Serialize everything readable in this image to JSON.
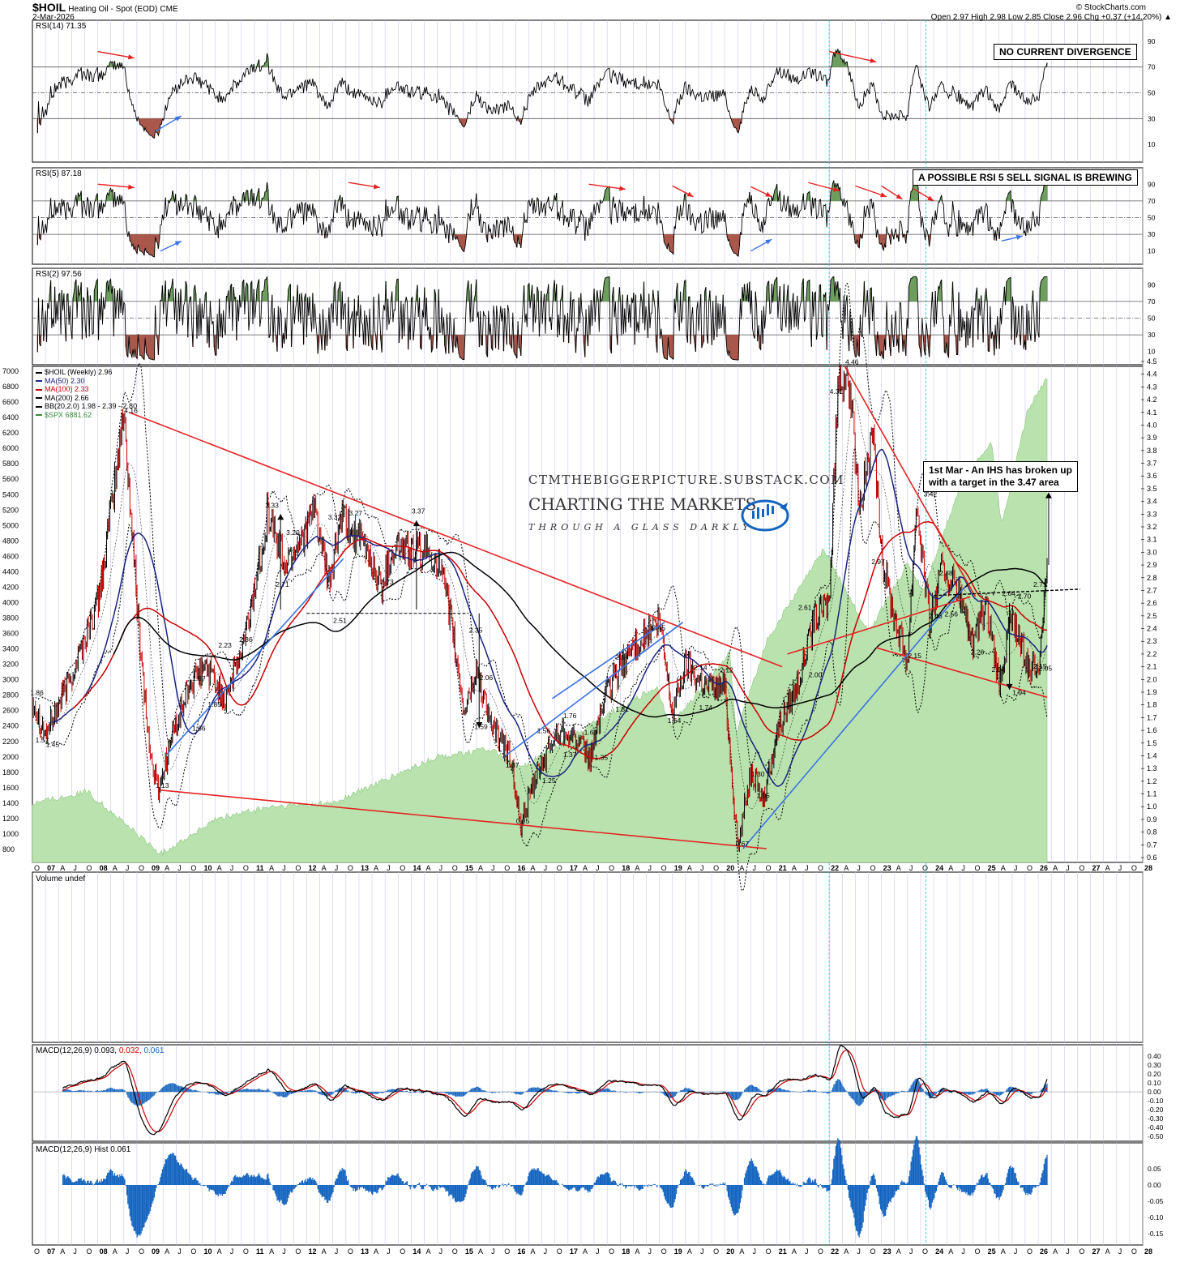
{
  "header": {
    "symbol": "$HOIL",
    "description": "Heating Oil - Spot (EOD)",
    "exchange": "CME",
    "date": "2-Mar-2026",
    "source": "© StockCharts.com",
    "ohlc": "Open 2.97  High 2.98  Low 2.85  Close 2.96  Chg +0.37 (+14.20%) ▲"
  },
  "panels": {
    "rsi14": {
      "label": "RSI(14) 71.35",
      "note": "NO CURRENT DIVERGENCE",
      "ticks": [
        "90",
        "70",
        "50",
        "30",
        "10"
      ]
    },
    "rsi5": {
      "label": "RSI(5) 87.18",
      "note": "A POSSIBLE RSI 5 SELL SIGNAL IS BREWING",
      "ticks": [
        "90",
        "70",
        "50",
        "30",
        "10"
      ]
    },
    "rsi2": {
      "label": "RSI(2) 97.56",
      "ticks": [
        "90",
        "70",
        "50",
        "30",
        "10"
      ]
    },
    "volume": {
      "label": "Volume undef"
    },
    "macd": {
      "label_main": "MACD(12,26,9) 0.093,",
      "label_signal": "0.032,",
      "label_hist": "0.061",
      "ticks": [
        "0.40",
        "0.30",
        "0.20",
        "0.10",
        "0.00",
        "-0.10",
        "-0.20",
        "-0.30",
        "-0.40",
        "-0.50"
      ]
    },
    "hist": {
      "label": "MACD(12,26,9) Hist 0.061",
      "ticks": [
        "0.05",
        "0.00",
        "-0.05",
        "-0.10",
        "-0.15"
      ]
    }
  },
  "legend": [
    {
      "text": "$HOIL (Weekly) 2.96",
      "color": "#000000"
    },
    {
      "text": "MA(50) 2.30",
      "color": "#1a237e"
    },
    {
      "text": "MA(100) 2.33",
      "color": "#cc0000"
    },
    {
      "text": "MA(200) 2.66",
      "color": "#000000"
    },
    {
      "text": "BB(20,2.0) 1.98 - 2.39 - 2.80",
      "color": "#000000"
    },
    {
      "text": "$SPX 6881.62",
      "color": "#3a8a3a"
    }
  ],
  "watermark": {
    "site": "CTMTHEBIGGERPICTURE.SUBSTACK.COM",
    "title": "CHARTING THE MARKETS",
    "tagline": "THROUGH A GLASS DARKLY"
  },
  "annotation": {
    "line1": "1st Mar - An IHS has broken up",
    "line2": "with a target in the 3.47 area"
  },
  "axes": {
    "price_ticks": [
      "4.5",
      "4.4",
      "4.3",
      "4.2",
      "4.1",
      "4.0",
      "3.9",
      "3.8",
      "3.7",
      "3.6",
      "3.5",
      "3.4",
      "3.3",
      "3.2",
      "3.1",
      "3.0",
      "2.9",
      "2.8",
      "2.7",
      "2.6",
      "2.5",
      "2.4",
      "2.3",
      "2.2",
      "2.1",
      "2.0",
      "1.9",
      "1.8",
      "1.7",
      "1.6",
      "1.5",
      "1.4",
      "1.3",
      "1.2",
      "1.1",
      "1.0",
      "0.9",
      "0.8",
      "0.7",
      "0.6"
    ],
    "spx_ticks": [
      "7000",
      "6800",
      "6600",
      "6400",
      "6200",
      "6000",
      "5800",
      "5600",
      "5400",
      "5200",
      "5000",
      "4800",
      "4600",
      "4400",
      "4200",
      "4000",
      "3800",
      "3600",
      "3400",
      "3200",
      "3000",
      "2800",
      "2600",
      "2400",
      "2200",
      "2000",
      "1800",
      "1600",
      "1400",
      "1200",
      "1000",
      "800"
    ],
    "time_labels": [
      "O",
      "07",
      "A",
      "J",
      "O",
      "08",
      "A",
      "J",
      "O",
      "09",
      "A",
      "J",
      "O",
      "10",
      "A",
      "J",
      "O",
      "11",
      "A",
      "J",
      "O",
      "12",
      "A",
      "J",
      "O",
      "13",
      "A",
      "J",
      "O",
      "14",
      "A",
      "J",
      "O",
      "15",
      "A",
      "J",
      "O",
      "16",
      "A",
      "J",
      "O",
      "17",
      "A",
      "J",
      "O",
      "18",
      "A",
      "J",
      "O",
      "19",
      "A",
      "J",
      "O",
      "20",
      "A",
      "J",
      "O",
      "21",
      "A",
      "J",
      "O",
      "22",
      "A",
      "J",
      "O",
      "23",
      "A",
      "J",
      "O",
      "24",
      "A",
      "J",
      "O",
      "25",
      "A",
      "J",
      "O",
      "26",
      "A",
      "J",
      "O",
      "27",
      "A",
      "J",
      "O",
      "28"
    ]
  },
  "chart_data": {
    "type": "line",
    "title": "$HOIL Heating Oil - Spot (EOD) Weekly",
    "x_range": [
      "2006-10",
      "2028-01"
    ],
    "ylim": [
      0.6,
      4.5
    ],
    "spx_ylim": [
      800,
      7000
    ],
    "price_path": [
      [
        "2006-10",
        1.86
      ],
      [
        "2007-01",
        1.57
      ],
      [
        "2007-06",
        1.95
      ],
      [
        "2008-01",
        2.6
      ],
      [
        "2008-04",
        3.3
      ],
      [
        "2008-07",
        4.1
      ],
      [
        "2008-10",
        2.6
      ],
      [
        "2009-01",
        1.4
      ],
      [
        "2009-03",
        1.13
      ],
      [
        "2009-06",
        1.55
      ],
      [
        "2009-10",
        1.95
      ],
      [
        "2010-02",
        2.1
      ],
      [
        "2010-06",
        1.85
      ],
      [
        "2010-10",
        2.2
      ],
      [
        "2011-01",
        2.7
      ],
      [
        "2011-04",
        3.33
      ],
      [
        "2011-08",
        2.9
      ],
      [
        "2012-03",
        3.32
      ],
      [
        "2012-06",
        2.73
      ],
      [
        "2012-09",
        3.27
      ],
      [
        "2013-03",
        3.0
      ],
      [
        "2013-06",
        2.73
      ],
      [
        "2013-09",
        3.05
      ],
      [
        "2014-01",
        3.0
      ],
      [
        "2014-04",
        3.0
      ],
      [
        "2014-07",
        2.95
      ],
      [
        "2014-10",
        2.5
      ],
      [
        "2015-01",
        1.75
      ],
      [
        "2015-04",
        2.06
      ],
      [
        "2015-08",
        1.59
      ],
      [
        "2015-12",
        1.37
      ],
      [
        "2016-02",
        0.85
      ],
      [
        "2016-06",
        1.25
      ],
      [
        "2016-10",
        1.56
      ],
      [
        "2017-01",
        1.6
      ],
      [
        "2017-06",
        1.37
      ],
      [
        "2017-09",
        1.81
      ],
      [
        "2018-01",
        2.1
      ],
      [
        "2018-05",
        2.3
      ],
      [
        "2018-10",
        2.45
      ],
      [
        "2019-01",
        1.74
      ],
      [
        "2019-04",
        2.12
      ],
      [
        "2019-09",
        1.95
      ],
      [
        "2020-01",
        1.95
      ],
      [
        "2020-04",
        0.67
      ],
      [
        "2020-07",
        1.3
      ],
      [
        "2020-10",
        1.05
      ],
      [
        "2021-01",
        1.6
      ],
      [
        "2021-06",
        2.0
      ],
      [
        "2021-10",
        2.5
      ],
      [
        "2022-01",
        2.61
      ],
      [
        "2022-03",
        4.31
      ],
      [
        "2022-05",
        4.46
      ],
      [
        "2022-08",
        3.4
      ],
      [
        "2022-11",
        3.9
      ],
      [
        "2023-01",
        2.97
      ],
      [
        "2023-04",
        2.5
      ],
      [
        "2023-07",
        2.15
      ],
      [
        "2023-09",
        3.42
      ],
      [
        "2023-12",
        2.46
      ],
      [
        "2024-03",
        2.88
      ],
      [
        "2024-07",
        2.66
      ],
      [
        "2024-10",
        2.26
      ],
      [
        "2025-01",
        2.58
      ],
      [
        "2025-04",
        1.94
      ],
      [
        "2025-07",
        2.5
      ],
      [
        "2025-10",
        2.15
      ],
      [
        "2026-01",
        2.05
      ],
      [
        "2026-03",
        2.96
      ]
    ],
    "annotated_levels": [
      1.86,
      1.57,
      1.45,
      4.16,
      1.13,
      1.66,
      1.97,
      1.85,
      2.23,
      2.36,
      3.33,
      3.2,
      2.71,
      3.32,
      3.27,
      2.51,
      2.73,
      3.37,
      2.35,
      2.06,
      1.59,
      1.37,
      0.85,
      1.25,
      1.56,
      1.76,
      1.37,
      1.63,
      1.35,
      1.81,
      2.14,
      2.45,
      1.64,
      2.14,
      1.74,
      2.12,
      0.67,
      1.3,
      1.05,
      2.61,
      2.0,
      4.31,
      4.46,
      2.97,
      3.42,
      2.88,
      2.15,
      2.56,
      2.46,
      2.26,
      2.04,
      1.94,
      2.64,
      2.7,
      2.71,
      2.15,
      2.05
    ],
    "last_values": {
      "price": 2.96,
      "ma50": 2.3,
      "ma100": 2.33,
      "ma200": 2.66,
      "bb_lower": 1.98,
      "bb_mid": 2.39,
      "bb_upper": 2.8,
      "spx": 6881.62,
      "rsi14": 71.35,
      "rsi5": 87.18,
      "rsi2": 97.56,
      "macd": 0.093,
      "macd_signal": 0.032,
      "macd_hist": 0.061
    }
  }
}
